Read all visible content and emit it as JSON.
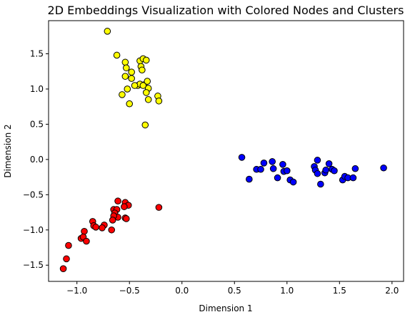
{
  "chart_data": {
    "type": "scatter",
    "title": "2D Embeddings Visualization with Colored Nodes and Clusters",
    "xlabel": "Dimension 1",
    "ylabel": "Dimension 2",
    "xlim": [
      -1.27,
      2.11
    ],
    "ylim": [
      -1.73,
      1.97
    ],
    "x_ticks": [
      -1.0,
      -0.5,
      0.0,
      0.5,
      1.0,
      1.5,
      2.0
    ],
    "x_tick_labels": [
      "−1.0",
      "−0.5",
      "0.0",
      "0.5",
      "1.0",
      "1.5",
      "2.0"
    ],
    "y_ticks": [
      -1.5,
      -1.0,
      -0.5,
      0.0,
      0.5,
      1.0,
      1.5
    ],
    "y_tick_labels": [
      "−1.5",
      "−1.0",
      "−0.5",
      "0.0",
      "0.5",
      "1.0",
      "1.5"
    ],
    "grid": false,
    "legend": "none",
    "marker_edge_color": "#000000",
    "series": [
      {
        "color": "#ffff00",
        "points": [
          [
            -0.71,
            1.82
          ],
          [
            -0.62,
            1.48
          ],
          [
            -0.54,
            1.38
          ],
          [
            -0.53,
            1.3
          ],
          [
            -0.48,
            1.24
          ],
          [
            -0.54,
            1.18
          ],
          [
            -0.48,
            1.15
          ],
          [
            -0.4,
            1.4
          ],
          [
            -0.37,
            1.43
          ],
          [
            -0.34,
            1.41
          ],
          [
            -0.39,
            1.32
          ],
          [
            -0.38,
            1.27
          ],
          [
            -0.36,
            1.06
          ],
          [
            -0.42,
            1.05
          ],
          [
            -0.4,
            1.07
          ],
          [
            -0.45,
            1.05
          ],
          [
            -0.37,
            1.05
          ],
          [
            -0.52,
            1.0
          ],
          [
            -0.57,
            0.92
          ],
          [
            -0.33,
            1.11
          ],
          [
            -0.32,
            1.01
          ],
          [
            -0.34,
            0.95
          ],
          [
            -0.32,
            0.85
          ],
          [
            -0.23,
            0.9
          ],
          [
            -0.22,
            0.83
          ],
          [
            -0.5,
            0.79
          ],
          [
            -0.35,
            0.49
          ]
        ]
      },
      {
        "color": "#0000ff",
        "points": [
          [
            0.57,
            0.03
          ],
          [
            0.64,
            -0.28
          ],
          [
            0.71,
            -0.14
          ],
          [
            0.75,
            -0.14
          ],
          [
            0.78,
            -0.05
          ],
          [
            0.86,
            -0.03
          ],
          [
            0.87,
            -0.13
          ],
          [
            0.91,
            -0.26
          ],
          [
            0.96,
            -0.07
          ],
          [
            0.97,
            -0.17
          ],
          [
            1.0,
            -0.16
          ],
          [
            1.03,
            -0.29
          ],
          [
            1.06,
            -0.32
          ],
          [
            1.26,
            -0.1
          ],
          [
            1.27,
            -0.15
          ],
          [
            1.29,
            -0.01
          ],
          [
            1.29,
            -0.2
          ],
          [
            1.32,
            -0.35
          ],
          [
            1.36,
            -0.19
          ],
          [
            1.37,
            -0.15
          ],
          [
            1.4,
            -0.06
          ],
          [
            1.43,
            -0.14
          ],
          [
            1.45,
            -0.16
          ],
          [
            1.53,
            -0.29
          ],
          [
            1.55,
            -0.24
          ],
          [
            1.58,
            -0.26
          ],
          [
            1.63,
            -0.26
          ],
          [
            1.65,
            -0.13
          ],
          [
            1.92,
            -0.12
          ]
        ]
      },
      {
        "color": "#ff0000",
        "points": [
          [
            -0.22,
            -0.68
          ],
          [
            -0.61,
            -0.59
          ],
          [
            -0.54,
            -0.61
          ],
          [
            -0.51,
            -0.65
          ],
          [
            -0.55,
            -0.67
          ],
          [
            -0.65,
            -0.71
          ],
          [
            -0.62,
            -0.71
          ],
          [
            -0.64,
            -0.76
          ],
          [
            -0.61,
            -0.82
          ],
          [
            -0.65,
            -0.8
          ],
          [
            -0.54,
            -0.83
          ],
          [
            -0.53,
            -0.84
          ],
          [
            -0.66,
            -0.86
          ],
          [
            -0.74,
            -0.93
          ],
          [
            -0.85,
            -0.88
          ],
          [
            -0.84,
            -0.94
          ],
          [
            -0.82,
            -0.96
          ],
          [
            -0.76,
            -0.97
          ],
          [
            -0.67,
            -1.0
          ],
          [
            -0.93,
            -1.02
          ],
          [
            -0.96,
            -1.12
          ],
          [
            -0.94,
            -1.1
          ],
          [
            -0.91,
            -1.16
          ],
          [
            -1.08,
            -1.22
          ],
          [
            -1.1,
            -1.41
          ],
          [
            -1.13,
            -1.55
          ]
        ]
      }
    ]
  }
}
